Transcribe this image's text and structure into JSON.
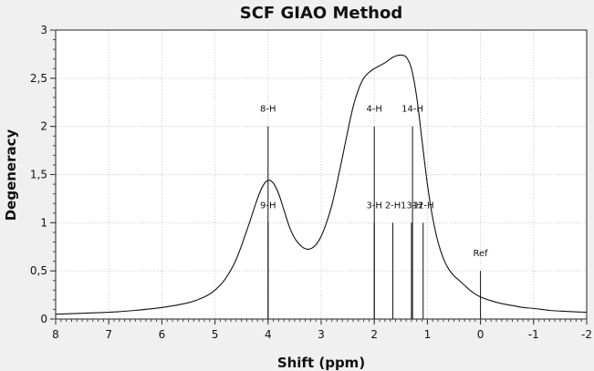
{
  "chart_data": {
    "type": "line",
    "title": "SCF GIAO Method",
    "xlabel": "Shift (ppm)",
    "ylabel": "Degeneracy",
    "xlim": [
      8,
      -2
    ],
    "ylim": [
      0,
      3
    ],
    "x_reversed": true,
    "grid": true,
    "xticks": [
      "8",
      "7",
      "6",
      "5",
      "4",
      "3",
      "2",
      "1",
      "0",
      "-1",
      "-2"
    ],
    "yticks": [
      "0",
      "0,5",
      "1",
      "1,5",
      "2",
      "2,5",
      "3"
    ],
    "ytick_values": [
      0,
      0.5,
      1,
      1.5,
      2,
      2.5,
      3
    ],
    "xtick_values": [
      8,
      7,
      6,
      5,
      4,
      3,
      2,
      1,
      0,
      -1,
      -2
    ],
    "spectrum": {
      "x": [
        8,
        7.5,
        7,
        6.5,
        6,
        5.5,
        5.2,
        5,
        4.8,
        4.6,
        4.4,
        4.2,
        4.1,
        4,
        3.9,
        3.8,
        3.7,
        3.6,
        3.5,
        3.4,
        3.3,
        3.2,
        3.1,
        3,
        2.9,
        2.8,
        2.7,
        2.6,
        2.5,
        2.4,
        2.3,
        2.2,
        2.1,
        2,
        1.9,
        1.8,
        1.7,
        1.6,
        1.5,
        1.4,
        1.3,
        1.2,
        1.1,
        1,
        0.9,
        0.8,
        0.7,
        0.6,
        0.5,
        0.4,
        0.3,
        0.2,
        0.1,
        0,
        -0.2,
        -0.4,
        -0.6,
        -0.8,
        -1,
        -1.3,
        -1.6,
        -2
      ],
      "y": [
        0.05,
        0.06,
        0.07,
        0.09,
        0.12,
        0.17,
        0.23,
        0.3,
        0.42,
        0.62,
        0.92,
        1.25,
        1.38,
        1.44,
        1.41,
        1.3,
        1.13,
        0.96,
        0.84,
        0.77,
        0.73,
        0.73,
        0.77,
        0.86,
        1.0,
        1.18,
        1.42,
        1.68,
        1.95,
        2.2,
        2.38,
        2.5,
        2.56,
        2.6,
        2.63,
        2.66,
        2.7,
        2.73,
        2.74,
        2.72,
        2.6,
        2.3,
        1.85,
        1.4,
        1.05,
        0.8,
        0.63,
        0.52,
        0.45,
        0.4,
        0.35,
        0.3,
        0.26,
        0.23,
        0.19,
        0.16,
        0.14,
        0.12,
        0.11,
        0.09,
        0.08,
        0.07
      ]
    },
    "peaks": [
      {
        "label": "8-H",
        "x": 4.0,
        "height": 2.0
      },
      {
        "label": "9-H",
        "x": 4.0,
        "height": 1.0
      },
      {
        "label": "4-H",
        "x": 2.0,
        "height": 2.0
      },
      {
        "label": "3-H",
        "x": 2.0,
        "height": 1.0
      },
      {
        "label": "2-H",
        "x": 1.65,
        "height": 1.0
      },
      {
        "label": "14-H",
        "x": 1.28,
        "height": 2.0
      },
      {
        "label": "13-H",
        "x": 1.3,
        "height": 1.0
      },
      {
        "label": "12-H",
        "x": 1.08,
        "height": 1.0
      },
      {
        "label": "Ref",
        "x": 0.0,
        "height": 0.5
      }
    ]
  }
}
